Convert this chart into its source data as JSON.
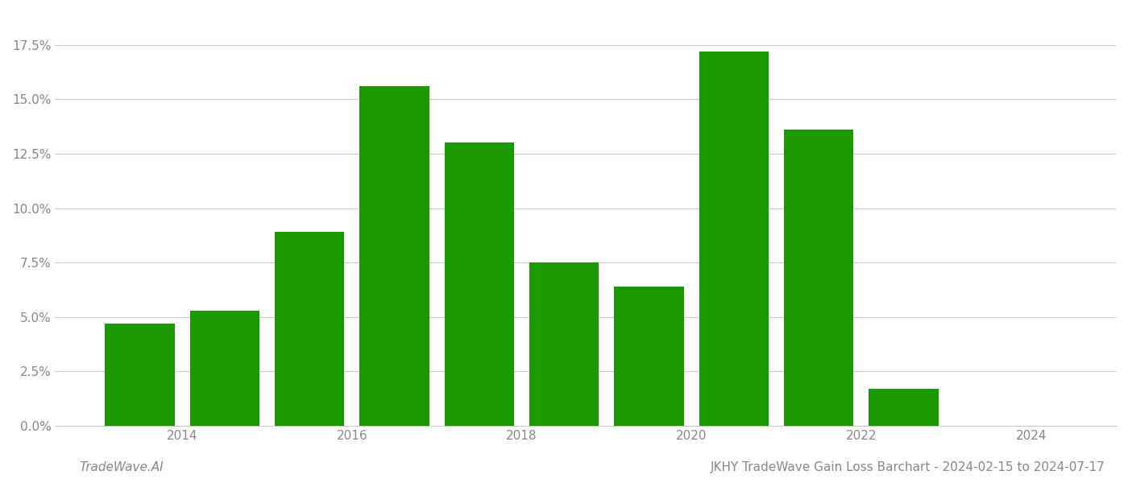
{
  "bar_centers": [
    2013.5,
    2014.5,
    2015.5,
    2016.5,
    2017.5,
    2018.5,
    2019.5,
    2020.5,
    2021.5,
    2022.5,
    2023.5
  ],
  "values": [
    0.047,
    0.053,
    0.089,
    0.156,
    0.13,
    0.075,
    0.064,
    0.172,
    0.136,
    0.017,
    0.0
  ],
  "bar_color": "#1a9a00",
  "background_color": "#ffffff",
  "title": "JKHY TradeWave Gain Loss Barchart - 2024-02-15 to 2024-07-17",
  "watermark_left": "TradeWave.AI",
  "xlim": [
    2012.5,
    2025.0
  ],
  "ylim": [
    0,
    0.19
  ],
  "yticks": [
    0.0,
    0.025,
    0.05,
    0.075,
    0.1,
    0.125,
    0.15,
    0.175
  ],
  "ytick_labels": [
    "0.0%",
    "2.5%",
    "5.0%",
    "7.5%",
    "10.0%",
    "12.5%",
    "15.0%",
    "17.5%"
  ],
  "xtick_positions": [
    2014,
    2016,
    2018,
    2020,
    2022,
    2024
  ],
  "xtick_labels": [
    "2014",
    "2016",
    "2018",
    "2020",
    "2022",
    "2024"
  ],
  "grid_color": "#cccccc",
  "title_fontsize": 11,
  "watermark_fontsize": 11,
  "tick_label_color": "#888888",
  "tick_label_fontsize": 11,
  "bar_width": 0.82
}
